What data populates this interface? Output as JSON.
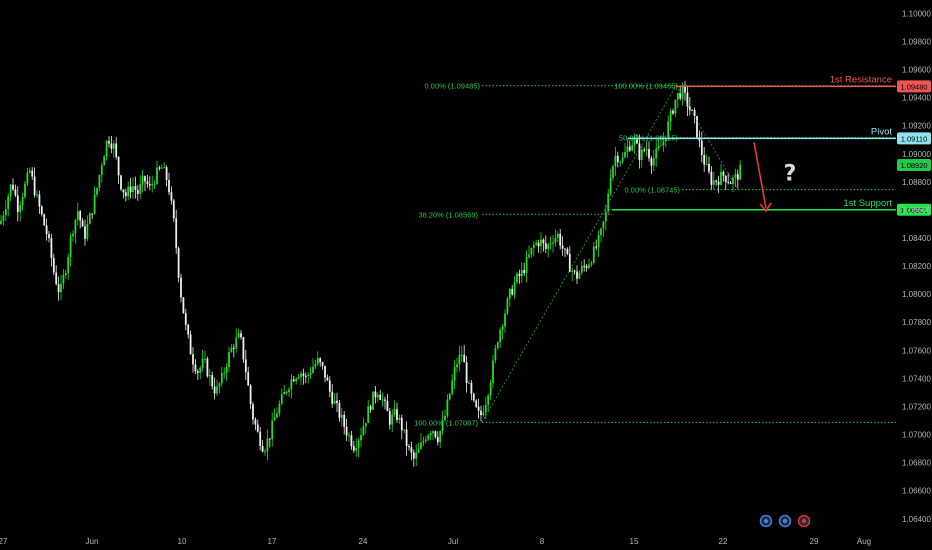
{
  "colors": {
    "background": "#000000",
    "bull": "#22dd22",
    "bear": "#eeeeee",
    "fib": "#22c84a",
    "resistance": "#f05555",
    "pivot": "#8fe3f0",
    "support": "#22e34a",
    "current": "#22c84a",
    "arrow": "#f03c3c"
  },
  "chart_data": {
    "type": "candlestick",
    "instrument_note": "",
    "y_axis": {
      "range": [
        1.0632,
        1.1006
      ],
      "ticks": [
        "1.10000",
        "1.09800",
        "1.09600",
        "1.09400",
        "1.09200",
        "1.09000",
        "1.08800",
        "1.08600",
        "1.08400",
        "1.08200",
        "1.08000",
        "1.07800",
        "1.07600",
        "1.07400",
        "1.07200",
        "1.07000",
        "1.06800",
        "1.06600",
        "1.06400"
      ]
    },
    "x_axis": {
      "ticks": [
        "27",
        "Jun",
        "10",
        "17",
        "24",
        "Jul",
        "8",
        "15",
        "22",
        "29",
        "Aug"
      ]
    },
    "close_path": [
      [
        0,
        1.085
      ],
      [
        6,
        1.0865
      ],
      [
        12,
        1.088
      ],
      [
        18,
        1.0862
      ],
      [
        24,
        1.0875
      ],
      [
        30,
        1.0888
      ],
      [
        36,
        1.087
      ],
      [
        42,
        1.0855
      ],
      [
        48,
        1.084
      ],
      [
        54,
        1.0815
      ],
      [
        60,
        1.08
      ],
      [
        66,
        1.082
      ],
      [
        72,
        1.0845
      ],
      [
        78,
        1.086
      ],
      [
        84,
        1.084
      ],
      [
        90,
        1.0855
      ],
      [
        96,
        1.0872
      ],
      [
        102,
        1.0895
      ],
      [
        108,
        1.0912
      ],
      [
        114,
        1.0905
      ],
      [
        120,
        1.088
      ],
      [
        126,
        1.087
      ],
      [
        132,
        1.0878
      ],
      [
        138,
        1.0872
      ],
      [
        144,
        1.0882
      ],
      [
        150,
        1.0875
      ],
      [
        156,
        1.0885
      ],
      [
        162,
        1.089
      ],
      [
        168,
        1.088
      ],
      [
        174,
        1.085
      ],
      [
        180,
        1.0805
      ],
      [
        186,
        1.0775
      ],
      [
        192,
        1.0755
      ],
      [
        198,
        1.0745
      ],
      [
        204,
        1.0752
      ],
      [
        210,
        1.074
      ],
      [
        216,
        1.073
      ],
      [
        222,
        1.074
      ],
      [
        228,
        1.0755
      ],
      [
        234,
        1.0765
      ],
      [
        240,
        1.077
      ],
      [
        246,
        1.0745
      ],
      [
        252,
        1.0715
      ],
      [
        258,
        1.07
      ],
      [
        264,
        1.069
      ],
      [
        270,
        1.07
      ],
      [
        276,
        1.0715
      ],
      [
        282,
        1.0725
      ],
      [
        288,
        1.0735
      ],
      [
        294,
        1.0742
      ],
      [
        300,
        1.0745
      ],
      [
        306,
        1.074
      ],
      [
        312,
        1.0748
      ],
      [
        318,
        1.0752
      ],
      [
        324,
        1.0745
      ],
      [
        330,
        1.073
      ],
      [
        336,
        1.072
      ],
      [
        342,
        1.071
      ],
      [
        348,
        1.07
      ],
      [
        354,
        1.0692
      ],
      [
        360,
        1.07
      ],
      [
        366,
        1.0712
      ],
      [
        372,
        1.0725
      ],
      [
        378,
        1.0732
      ],
      [
        384,
        1.0722
      ],
      [
        390,
        1.071
      ],
      [
        396,
        1.0715
      ],
      [
        402,
        1.0705
      ],
      [
        408,
        1.069
      ],
      [
        414,
        1.0682
      ],
      [
        420,
        1.069
      ],
      [
        426,
        1.07
      ],
      [
        432,
        1.0705
      ],
      [
        438,
        1.0698
      ],
      [
        444,
        1.071
      ],
      [
        450,
        1.073
      ],
      [
        456,
        1.075
      ],
      [
        462,
        1.0758
      ],
      [
        468,
        1.0735
      ],
      [
        474,
        1.072
      ],
      [
        480,
        1.0712
      ],
      [
        486,
        1.0725
      ],
      [
        492,
        1.0745
      ],
      [
        498,
        1.077
      ],
      [
        504,
        1.0785
      ],
      [
        510,
        1.08
      ],
      [
        516,
        1.081
      ],
      [
        522,
        1.0815
      ],
      [
        528,
        1.0825
      ],
      [
        534,
        1.0835
      ],
      [
        540,
        1.0838
      ],
      [
        546,
        1.0832
      ],
      [
        552,
        1.084
      ],
      [
        558,
        1.0842
      ],
      [
        564,
        1.083
      ],
      [
        570,
        1.082
      ],
      [
        576,
        1.0812
      ],
      [
        582,
        1.0818
      ],
      [
        588,
        1.0822
      ],
      [
        594,
        1.083
      ],
      [
        600,
        1.084
      ],
      [
        606,
        1.0858
      ],
      [
        610,
        1.0885
      ],
      [
        616,
        1.09
      ],
      [
        622,
        1.0895
      ],
      [
        628,
        1.0905
      ],
      [
        634,
        1.091
      ],
      [
        640,
        1.0898
      ],
      [
        646,
        1.0905
      ],
      [
        652,
        1.0895
      ],
      [
        658,
        1.0902
      ],
      [
        664,
        1.091
      ],
      [
        670,
        1.0925
      ],
      [
        676,
        1.094
      ],
      [
        682,
        1.0945
      ],
      [
        688,
        1.0935
      ],
      [
        694,
        1.0925
      ],
      [
        700,
        1.0905
      ],
      [
        706,
        1.089
      ],
      [
        712,
        1.088
      ],
      [
        718,
        1.0882
      ],
      [
        724,
        1.0885
      ],
      [
        730,
        1.088
      ],
      [
        736,
        1.0883
      ],
      [
        742,
        1.089
      ]
    ],
    "levels": [
      {
        "label": "1st Resistance",
        "value": 1.0948,
        "tag": "1.09480",
        "role": "resistance"
      },
      {
        "label": "Pivot",
        "value": 1.0911,
        "tag": "1.09110",
        "role": "pivot"
      },
      {
        "label": "",
        "value": 1.0892,
        "tag": "1.08920",
        "role": "current"
      },
      {
        "label": "1st Support",
        "value": 1.08601,
        "tag": "1.08601",
        "role": "support"
      }
    ],
    "fib_retracements": [
      {
        "label": "0.00% (1.09485)",
        "value": 1.09485
      },
      {
        "label": "100.00% (1.09485)",
        "value": 1.09485
      },
      {
        "label": "50.00% (1.09115)",
        "value": 1.09115
      },
      {
        "label": "0.00% (1.08745)",
        "value": 1.08745
      },
      {
        "label": "38.20% (1.08569)",
        "value": 1.08569
      },
      {
        "label": "100.00% (1.07087)",
        "value": 1.07087
      }
    ],
    "annotation": "?"
  }
}
